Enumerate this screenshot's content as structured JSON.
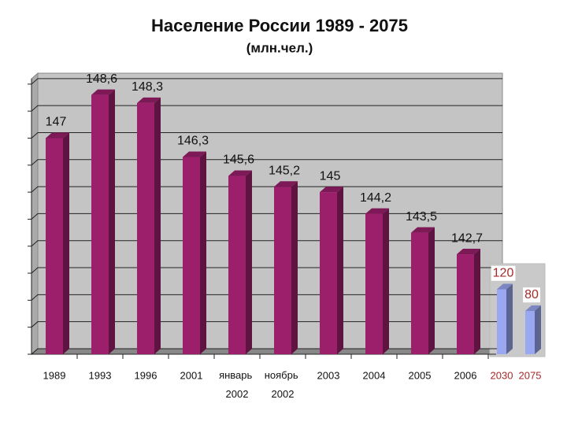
{
  "chart_data": {
    "type": "bar3d",
    "title": "Население России  1989 - 2075",
    "subtitle": "(млн.чел.)",
    "categories": [
      "1989",
      "1993",
      "1996",
      "2001",
      "январь 2002",
      "ноябрь 2002",
      "2003",
      "2004",
      "2005",
      "2006",
      "2030",
      "2075"
    ],
    "series": [
      {
        "color": "#9c1f6c",
        "values": [
          147,
          148.6,
          148.3,
          146.3,
          145.6,
          145.2,
          145,
          144.2,
          143.5,
          142.7,
          null,
          null
        ],
        "value_labels": [
          "147",
          "148,6",
          "148,3",
          "146,3",
          "145,6",
          "145,2",
          "145",
          "144,2",
          "143,5",
          "142,7",
          null,
          null
        ]
      },
      {
        "color": "#9aa8f2",
        "axis": "y2",
        "values": [
          null,
          null,
          null,
          null,
          null,
          null,
          null,
          null,
          null,
          null,
          120,
          80
        ]
      }
    ],
    "ylim": [
      139,
      149.2
    ],
    "yticks": [
      139,
      140,
      141,
      142,
      143,
      144,
      145,
      146,
      147,
      148,
      149
    ],
    "y2lim": [
      0,
      160
    ],
    "grid": true
  }
}
